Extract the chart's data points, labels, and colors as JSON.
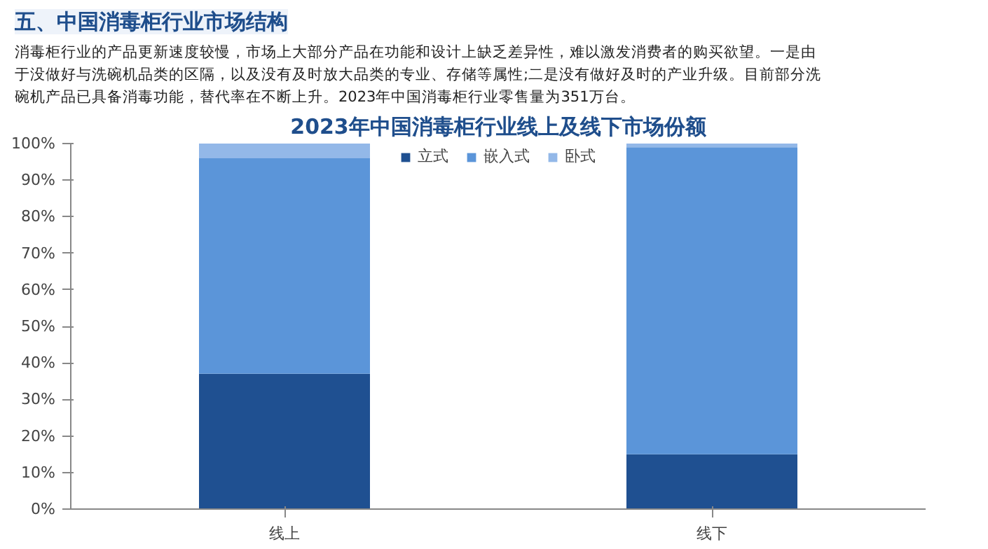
{
  "chart_data": {
    "type": "bar",
    "title": "2023年中国消毒柜行业线上及线下市场份额",
    "annotations": [
      "五、中国消毒柜行业市场结构",
      "消毒柜行业的产品更新速度较慢，市场上大部分产品在功能和设计上缺乏差异性，难以激发消费者的购买欲望。一是由",
      "于没做好与洗碗机品类的区隔，以及没有及时放大品类的专业、存储等属性;二是没有做好及时的产业升级。目前部分洗",
      "碗机产品已具备消毒功能，替代率在不断上升。2023年中国消毒柜行业零售量为351万台。"
    ],
    "categories": [
      "线上",
      "线下"
    ],
    "series": [
      {
        "name": "立式",
        "color": "#1f5091",
        "values": [
          37,
          15
        ]
      },
      {
        "name": "嵌入式",
        "color": "#5b95d9",
        "values": [
          59,
          84
        ]
      },
      {
        "name": "卧式",
        "color": "#93b8e8",
        "values": [
          4,
          1
        ]
      }
    ],
    "stacked": true,
    "ylim": [
      0,
      100
    ],
    "yticks": [
      {
        "value": 0,
        "label": "0%"
      },
      {
        "value": 10,
        "label": "10%"
      },
      {
        "value": 20,
        "label": "20%"
      },
      {
        "value": 30,
        "label": "30%"
      },
      {
        "value": 40,
        "label": "40%"
      },
      {
        "value": 50,
        "label": "50%"
      },
      {
        "value": 60,
        "label": "60%"
      },
      {
        "value": 70,
        "label": "70%"
      },
      {
        "value": 80,
        "label": "80%"
      },
      {
        "value": 90,
        "label": "90%"
      },
      {
        "value": 100,
        "label": "100%"
      }
    ],
    "grid": false,
    "legend": "top"
  }
}
